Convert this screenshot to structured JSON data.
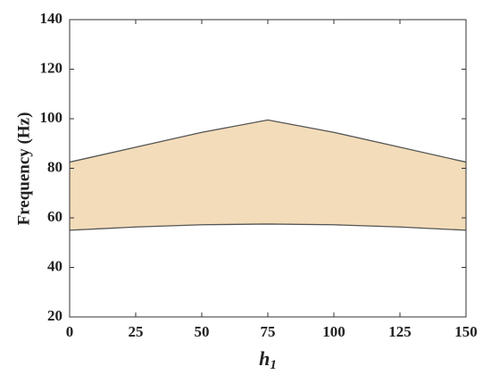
{
  "chart_data": {
    "type": "band",
    "xlabel": "h",
    "xlabel_subscript": "1",
    "ylabel": "Frequency (Hz)",
    "x": [
      0,
      25,
      50,
      75,
      100,
      125,
      150
    ],
    "series": [
      {
        "color": "#555555",
        "values": [
          55,
          56.3,
          57.2,
          57.5,
          57.2,
          56.3,
          55
        ]
      },
      {
        "color": "#555555",
        "values": [
          82.5,
          88.5,
          94.5,
          99.5,
          94.5,
          88.5,
          82.5
        ]
      }
    ],
    "fill": "#f3dcb9",
    "xlim": [
      0,
      150
    ],
    "xticks": [
      0,
      25,
      50,
      75,
      100,
      125,
      150
    ],
    "ylim": [
      20,
      140
    ],
    "yticks": [
      20,
      40,
      60,
      80,
      100,
      120,
      140
    ]
  }
}
